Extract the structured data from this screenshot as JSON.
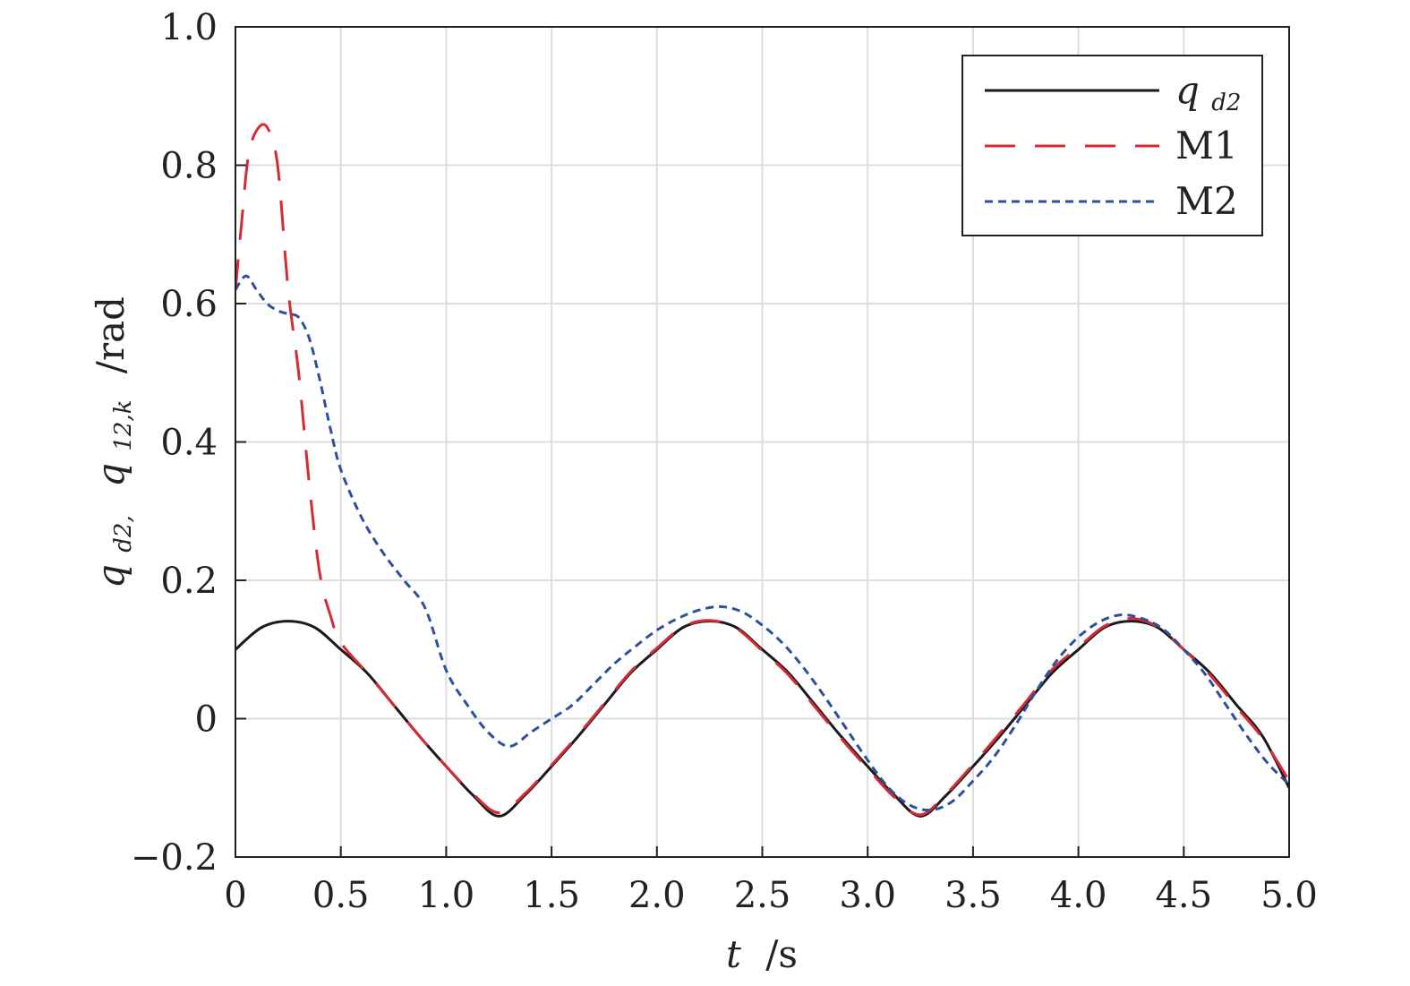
{
  "chart_data": {
    "type": "line",
    "xlabel": {
      "main": "t",
      "unit": "/s"
    },
    "ylabel": {
      "part1_main": "q",
      "part1_sub": "d2,",
      "part2_main": "q",
      "part2_sub": "12,k",
      "unit": "/rad"
    },
    "xlim": [
      0,
      5
    ],
    "ylim": [
      -0.2,
      1.0
    ],
    "xticks": [
      0,
      0.5,
      1.0,
      1.5,
      2.0,
      2.5,
      3.0,
      3.5,
      4.0,
      4.5,
      5.0
    ],
    "xtick_labels": [
      "0",
      "0.5",
      "1.0",
      "1.5",
      "2.0",
      "2.5",
      "3.0",
      "3.5",
      "4.0",
      "4.5",
      "5.0"
    ],
    "yticks": [
      -0.2,
      0,
      0.2,
      0.4,
      0.6,
      0.8,
      1.0
    ],
    "ytick_labels": [
      "−0.2",
      "0",
      "0.2",
      "0.4",
      "0.6",
      "0.8",
      "1.0"
    ],
    "grid": true,
    "legend_position": "top-right",
    "series": [
      {
        "name": "q",
        "name_sub": "d2",
        "color": "#1a1a1a",
        "dash": "solid",
        "x": [
          0,
          0.125,
          0.25,
          0.375,
          0.5,
          0.625,
          0.75,
          0.875,
          1.0,
          1.125,
          1.25,
          1.375,
          1.5,
          1.625,
          1.75,
          1.875,
          2.0,
          2.125,
          2.25,
          2.375,
          2.5,
          2.625,
          2.75,
          2.875,
          3.0,
          3.125,
          3.25,
          3.375,
          3.5,
          3.625,
          3.75,
          3.875,
          4.0,
          4.125,
          4.25,
          4.375,
          4.5,
          4.625,
          4.75,
          4.875,
          5.0
        ],
        "y": [
          0.1,
          0.132,
          0.141,
          0.132,
          0.1,
          0.066,
          0.02,
          -0.026,
          -0.069,
          -0.11,
          -0.141,
          -0.11,
          -0.069,
          -0.026,
          0.02,
          0.066,
          0.1,
          0.132,
          0.141,
          0.132,
          0.1,
          0.066,
          0.02,
          -0.026,
          -0.069,
          -0.11,
          -0.141,
          -0.11,
          -0.069,
          -0.026,
          0.02,
          0.066,
          0.1,
          0.132,
          0.141,
          0.132,
          0.1,
          0.066,
          0.02,
          -0.026,
          -0.1
        ]
      },
      {
        "name": "M1",
        "color": "#d62a36",
        "dash": "long-dash",
        "x": [
          0,
          0.03,
          0.06,
          0.1,
          0.15,
          0.2,
          0.25,
          0.3,
          0.35,
          0.4,
          0.45,
          0.5,
          0.625,
          0.75,
          0.875,
          1.0,
          1.125,
          1.25,
          1.375,
          1.5,
          1.625,
          1.75,
          1.875,
          2.0,
          2.125,
          2.25,
          2.375,
          2.5,
          2.625,
          2.75,
          2.875,
          3.0,
          3.125,
          3.25,
          3.375,
          3.5,
          3.625,
          3.75,
          3.875,
          4.0,
          4.125,
          4.25,
          4.375,
          4.5,
          4.625,
          4.75,
          4.875,
          5.0
        ],
        "y": [
          0.62,
          0.72,
          0.81,
          0.85,
          0.855,
          0.8,
          0.62,
          0.5,
          0.34,
          0.21,
          0.15,
          0.11,
          0.066,
          0.02,
          -0.026,
          -0.069,
          -0.108,
          -0.136,
          -0.108,
          -0.067,
          -0.024,
          0.022,
          0.068,
          0.102,
          0.133,
          0.142,
          0.131,
          0.098,
          0.063,
          0.017,
          -0.029,
          -0.072,
          -0.113,
          -0.139,
          -0.108,
          -0.066,
          -0.022,
          0.024,
          0.071,
          0.103,
          0.134,
          0.145,
          0.133,
          0.1,
          0.063,
          0.017,
          -0.029,
          -0.09
        ]
      },
      {
        "name": "M2",
        "color": "#2e4f9e",
        "dash": "short-dash",
        "x": [
          0,
          0.05,
          0.1,
          0.15,
          0.2,
          0.25,
          0.3,
          0.35,
          0.4,
          0.45,
          0.5,
          0.6,
          0.7,
          0.8,
          0.9,
          1.0,
          1.1,
          1.2,
          1.3,
          1.4,
          1.5,
          1.6,
          1.7,
          1.8,
          1.9,
          2.0,
          2.1,
          2.2,
          2.3,
          2.4,
          2.5,
          2.6,
          2.7,
          2.8,
          2.9,
          3.0,
          3.1,
          3.2,
          3.3,
          3.4,
          3.5,
          3.6,
          3.7,
          3.8,
          3.9,
          4.0,
          4.1,
          4.2,
          4.3,
          4.4,
          4.5,
          4.6,
          4.7,
          4.8,
          4.9,
          5.0
        ],
        "y": [
          0.62,
          0.64,
          0.62,
          0.6,
          0.59,
          0.585,
          0.58,
          0.55,
          0.49,
          0.42,
          0.36,
          0.29,
          0.24,
          0.2,
          0.16,
          0.07,
          0.02,
          -0.02,
          -0.04,
          -0.02,
          0.0,
          0.02,
          0.05,
          0.08,
          0.105,
          0.128,
          0.145,
          0.157,
          0.162,
          0.155,
          0.135,
          0.108,
          0.072,
          0.03,
          -0.015,
          -0.06,
          -0.1,
          -0.125,
          -0.132,
          -0.12,
          -0.09,
          -0.055,
          -0.01,
          0.04,
          0.085,
          0.118,
          0.14,
          0.15,
          0.145,
          0.13,
          0.1,
          0.065,
          0.02,
          -0.025,
          -0.065,
          -0.095
        ]
      }
    ]
  }
}
